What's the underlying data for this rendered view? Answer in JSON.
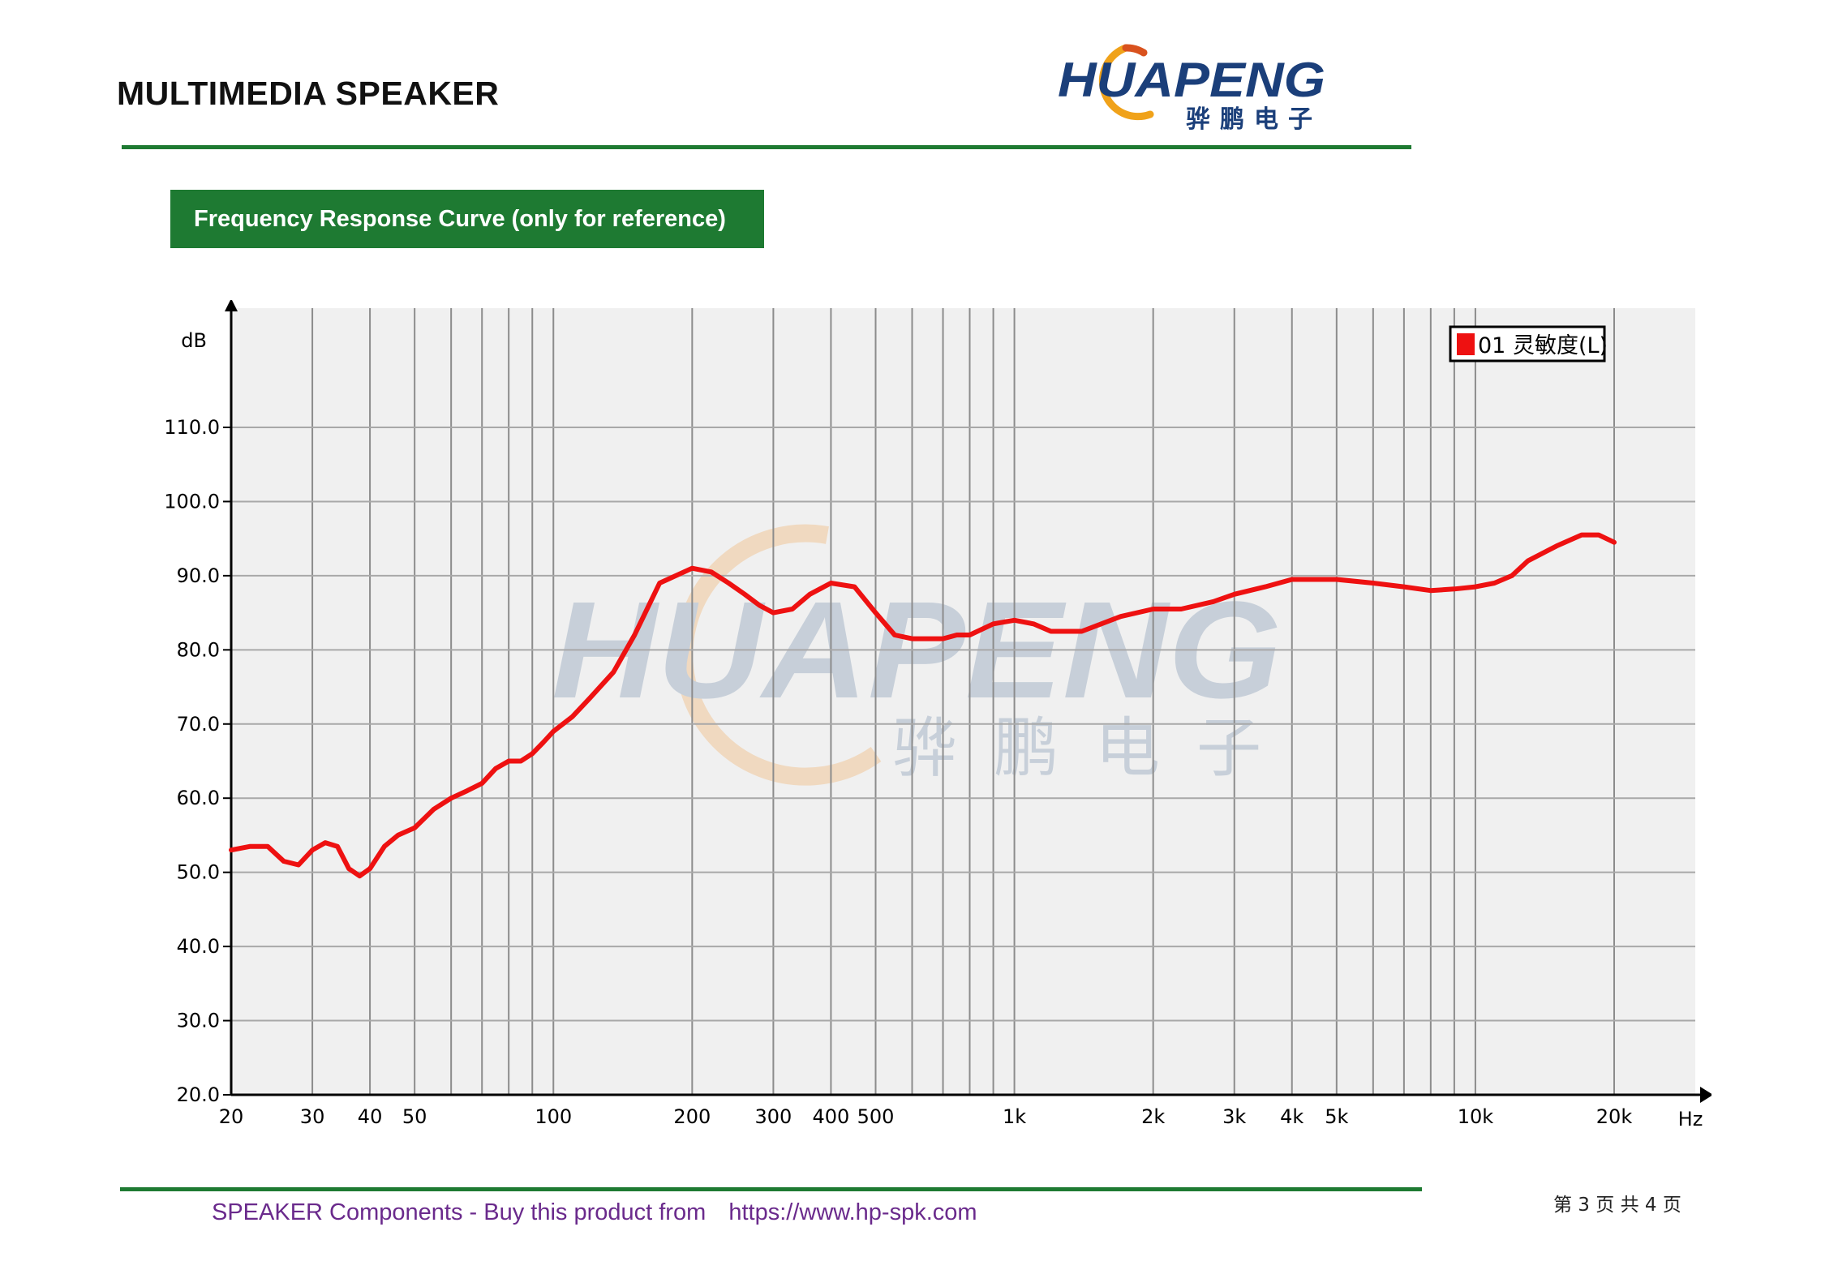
{
  "header": {
    "title": "MULTIMEDIA SPEAKER",
    "logo_text": "HUAPENG",
    "logo_subtext": "骅鹏电子"
  },
  "section": {
    "title": "Frequency Response Curve (only for reference)"
  },
  "footer": {
    "text": "SPEAKER Components - Buy this product from",
    "url": "https://www.hp-spk.com",
    "page": "第 3 页 共 4 页"
  },
  "colors": {
    "brand_green": "#1e7a32",
    "curve": "#ee1111",
    "footer_text": "#6a2a8c",
    "plot_bg": "#f0f0f0"
  },
  "chart_data": {
    "type": "line",
    "title": "",
    "xlabel": "Hz",
    "ylabel": "dB",
    "x_scale": "log",
    "xlim": [
      20,
      20000
    ],
    "ylim": [
      20,
      110
    ],
    "grid": true,
    "legend": "top-right",
    "watermark": "HUAPENG 骅鹏电子",
    "x_ticks": [
      {
        "v": 20,
        "label": "20"
      },
      {
        "v": 30,
        "label": "30"
      },
      {
        "v": 40,
        "label": "40"
      },
      {
        "v": 50,
        "label": "50"
      },
      {
        "v": 100,
        "label": "100"
      },
      {
        "v": 200,
        "label": "200"
      },
      {
        "v": 300,
        "label": "300"
      },
      {
        "v": 400,
        "label": "400"
      },
      {
        "v": 500,
        "label": "500"
      },
      {
        "v": 1000,
        "label": "1k"
      },
      {
        "v": 2000,
        "label": "2k"
      },
      {
        "v": 3000,
        "label": "3k"
      },
      {
        "v": 4000,
        "label": "4k"
      },
      {
        "v": 5000,
        "label": "5k"
      },
      {
        "v": 10000,
        "label": "10k"
      },
      {
        "v": 20000,
        "label": "20k"
      }
    ],
    "y_ticks": [
      {
        "v": 20,
        "label": "20.0"
      },
      {
        "v": 30,
        "label": "30.0"
      },
      {
        "v": 40,
        "label": "40.0"
      },
      {
        "v": 50,
        "label": "50.0"
      },
      {
        "v": 60,
        "label": "60.0"
      },
      {
        "v": 70,
        "label": "70.0"
      },
      {
        "v": 80,
        "label": "80.0"
      },
      {
        "v": 90,
        "label": "90.0"
      },
      {
        "v": 100,
        "label": "100.0"
      },
      {
        "v": 110,
        "label": "110.0"
      }
    ],
    "series": [
      {
        "name": "01 灵敏度(L)",
        "color": "#ee1111",
        "x": [
          20,
          22,
          24,
          26,
          28,
          30,
          32,
          34,
          36,
          38,
          40,
          43,
          46,
          50,
          55,
          60,
          65,
          70,
          75,
          80,
          85,
          90,
          95,
          100,
          110,
          120,
          135,
          150,
          170,
          200,
          220,
          240,
          260,
          280,
          300,
          330,
          360,
          400,
          450,
          500,
          550,
          600,
          650,
          700,
          750,
          800,
          900,
          1000,
          1100,
          1200,
          1400,
          1700,
          2000,
          2300,
          2700,
          3000,
          3500,
          4000,
          5000,
          6000,
          7000,
          8000,
          9000,
          10000,
          11000,
          12000,
          13000,
          15000,
          17000,
          18500,
          20000
        ],
        "y": [
          53,
          53.5,
          53.5,
          51.5,
          51,
          53,
          54,
          53.5,
          50.5,
          49.5,
          50.5,
          53.5,
          55,
          56,
          58.5,
          60,
          61,
          62,
          64,
          65,
          65,
          66,
          67.5,
          69,
          71,
          73.5,
          77,
          82,
          89,
          91,
          90.5,
          89,
          87.5,
          86,
          85,
          85.5,
          87.5,
          89,
          88.5,
          85,
          82,
          81.5,
          81.5,
          81.5,
          82,
          82,
          83.5,
          84,
          83.5,
          82.5,
          82.5,
          84.5,
          85.5,
          85.5,
          86.5,
          87.5,
          88.5,
          89.5,
          89.5,
          89,
          88.5,
          88,
          88.2,
          88.5,
          89,
          90,
          92,
          94,
          95.5,
          95.5,
          94.5
        ]
      }
    ]
  }
}
